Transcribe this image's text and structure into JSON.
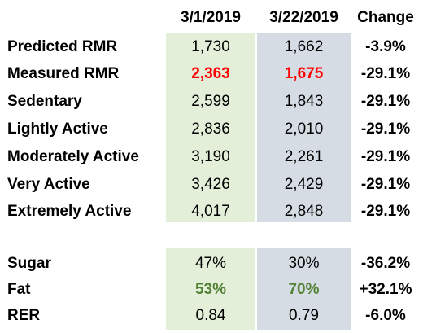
{
  "header": {
    "col_a": "3/1/2019",
    "col_b": "3/22/2019",
    "col_c": "Change"
  },
  "rows": [
    {
      "label": "Predicted RMR",
      "a": "1,730",
      "b": "1,662",
      "change": "-3.9%"
    },
    {
      "label": "Measured RMR",
      "a": "2,363",
      "b": "1,675",
      "change": "-29.1%"
    },
    {
      "label": "Sedentary",
      "a": "2,599",
      "b": "1,843",
      "change": "-29.1%"
    },
    {
      "label": "Lightly Active",
      "a": "2,836",
      "b": "2,010",
      "change": "-29.1%"
    },
    {
      "label": "Moderately Active",
      "a": "3,190",
      "b": "2,261",
      "change": "-29.1%"
    },
    {
      "label": "Very Active",
      "a": "3,426",
      "b": "2,429",
      "change": "-29.1%"
    },
    {
      "label": "Extremely Active",
      "a": "4,017",
      "b": "2,848",
      "change": "-29.1%"
    }
  ],
  "rows2": [
    {
      "label": "Sugar",
      "a": "47%",
      "b": "30%",
      "change": "-36.2%"
    },
    {
      "label": "Fat",
      "a": "53%",
      "b": "70%",
      "change": "+32.1%"
    },
    {
      "label": "RER",
      "a": "0.84",
      "b": "0.79",
      "change": "-6.0%"
    }
  ],
  "colors": {
    "col_a_fill": "#e4efda",
    "col_b_fill": "#d6dce4",
    "highlight_red": "#ff0000",
    "highlight_green": "#548235"
  }
}
